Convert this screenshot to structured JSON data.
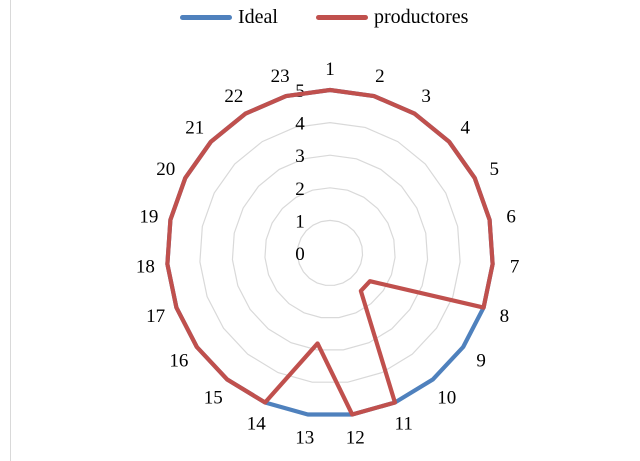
{
  "chart_data": {
    "type": "radar",
    "categories": [
      "1",
      "2",
      "3",
      "4",
      "5",
      "6",
      "7",
      "8",
      "9",
      "10",
      "11",
      "12",
      "13",
      "14",
      "15",
      "16",
      "17",
      "18",
      "19",
      "20",
      "21",
      "22",
      "23"
    ],
    "rlim": [
      0,
      5
    ],
    "radial_ticks": [
      "0",
      "1",
      "2",
      "3",
      "4",
      "5"
    ],
    "grid": true,
    "legend": "top",
    "series": [
      {
        "name": "Ideal",
        "color": "#4f81bd",
        "values": [
          5,
          5,
          5,
          5,
          5,
          5,
          5,
          5,
          5,
          5,
          5,
          5,
          5,
          5,
          5,
          5,
          5,
          5,
          5,
          5,
          5,
          5,
          5
        ]
      },
      {
        "name": "productores",
        "color": "#c0504d",
        "values": [
          5,
          5,
          5,
          5,
          5,
          5,
          5,
          5,
          1.5,
          1.5,
          5,
          5,
          2.8,
          5,
          5,
          5,
          5,
          5,
          5,
          5,
          5,
          5,
          5
        ]
      }
    ]
  }
}
